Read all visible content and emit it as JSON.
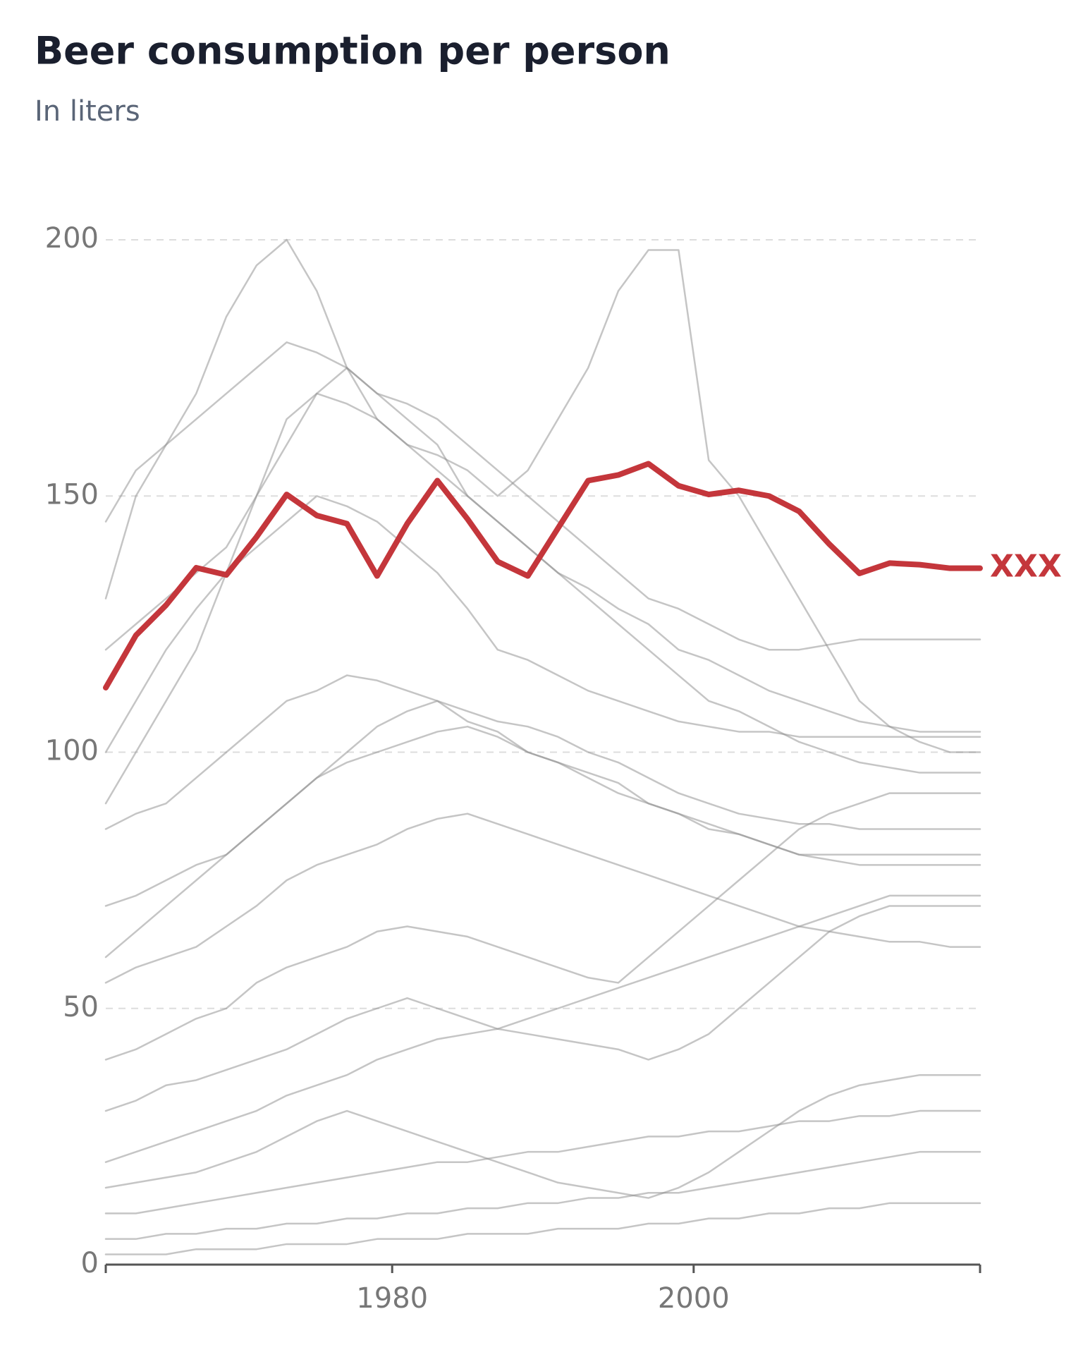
{
  "chart_data": {
    "type": "line",
    "title": "Beer consumption per person",
    "subtitle": "In liters",
    "x": [
      1961,
      1963,
      1965,
      1967,
      1969,
      1971,
      1973,
      1975,
      1977,
      1979,
      1981,
      1983,
      1985,
      1987,
      1989,
      1991,
      1993,
      1995,
      1997,
      1999,
      2001,
      2003,
      2005,
      2007,
      2009,
      2011,
      2013,
      2015,
      2017,
      2019
    ],
    "xlim": [
      1961,
      2019
    ],
    "xticks": [
      1980,
      2000
    ],
    "ylim": [
      0,
      200
    ],
    "yticks": [
      0,
      50,
      100,
      150,
      200
    ],
    "grid": true,
    "series": [
      {
        "name": "XXX",
        "color": "#c4363b",
        "values": [
          112.6,
          122.8,
          128.7,
          136,
          134.6,
          142,
          150.3,
          146.2,
          144.6,
          134.4,
          144.6,
          153,
          145.5,
          137.2,
          134.4,
          143.7,
          153,
          154.1,
          156.3,
          152,
          150.3,
          151.1,
          150,
          147,
          140.6,
          134.9,
          136.9,
          136.6,
          135.9,
          135.9
        ]
      },
      {
        "color": "#8c8c8c",
        "values": [
          130,
          150,
          160,
          170,
          185,
          195,
          200,
          190,
          175,
          165,
          160,
          155,
          150,
          145,
          140,
          135,
          130,
          125,
          120,
          115,
          110,
          108,
          105,
          102,
          100,
          98,
          97,
          96,
          96,
          96
        ]
      },
      {
        "color": "#8c8c8c",
        "values": [
          90,
          100,
          110,
          120,
          135,
          150,
          165,
          170,
          168,
          165,
          160,
          158,
          155,
          150,
          155,
          165,
          175,
          190,
          198,
          198,
          157,
          150,
          140,
          130,
          120,
          110,
          105,
          102,
          100,
          100
        ]
      },
      {
        "color": "#8c8c8c",
        "values": [
          145,
          155,
          160,
          165,
          170,
          175,
          180,
          178,
          175,
          170,
          168,
          165,
          160,
          155,
          150,
          145,
          140,
          135,
          130,
          128,
          125,
          122,
          120,
          120,
          121,
          122,
          122,
          122,
          122,
          122
        ]
      },
      {
        "color": "#8c8c8c",
        "values": [
          100,
          110,
          120,
          128,
          135,
          140,
          145,
          150,
          148,
          145,
          140,
          135,
          128,
          120,
          118,
          115,
          112,
          110,
          108,
          106,
          105,
          104,
          104,
          103,
          103,
          103,
          103,
          103,
          103,
          103
        ]
      },
      {
        "color": "#8c8c8c",
        "values": [
          85,
          88,
          90,
          95,
          100,
          105,
          110,
          112,
          115,
          114,
          112,
          110,
          108,
          106,
          105,
          103,
          100,
          98,
          95,
          92,
          90,
          88,
          87,
          86,
          86,
          85,
          85,
          85,
          85,
          85
        ]
      },
      {
        "color": "#8c8c8c",
        "values": [
          70,
          72,
          75,
          78,
          80,
          85,
          90,
          95,
          100,
          105,
          108,
          110,
          106,
          104,
          100,
          98,
          96,
          94,
          90,
          88,
          85,
          84,
          82,
          80,
          79,
          78,
          78,
          78,
          78,
          78
        ]
      },
      {
        "color": "#8c8c8c",
        "values": [
          55,
          58,
          60,
          62,
          66,
          70,
          75,
          78,
          80,
          82,
          85,
          87,
          88,
          86,
          84,
          82,
          80,
          78,
          76,
          74,
          72,
          70,
          68,
          66,
          65,
          64,
          63,
          63,
          62,
          62
        ]
      },
      {
        "color": "#8c8c8c",
        "values": [
          40,
          42,
          45,
          48,
          50,
          55,
          58,
          60,
          62,
          65,
          66,
          65,
          64,
          62,
          60,
          58,
          56,
          55,
          60,
          65,
          70,
          75,
          80,
          85,
          88,
          90,
          92,
          92,
          92,
          92
        ]
      },
      {
        "color": "#8c8c8c",
        "values": [
          30,
          32,
          35,
          36,
          38,
          40,
          42,
          45,
          48,
          50,
          52,
          50,
          48,
          46,
          45,
          44,
          43,
          42,
          40,
          42,
          45,
          50,
          55,
          60,
          65,
          68,
          70,
          70,
          70,
          70
        ]
      },
      {
        "color": "#8c8c8c",
        "values": [
          20,
          22,
          24,
          26,
          28,
          30,
          33,
          35,
          37,
          40,
          42,
          44,
          45,
          46,
          48,
          50,
          52,
          54,
          56,
          58,
          60,
          62,
          64,
          66,
          68,
          70,
          72,
          72,
          72,
          72
        ]
      },
      {
        "color": "#8c8c8c",
        "values": [
          15,
          16,
          17,
          18,
          20,
          22,
          25,
          28,
          30,
          28,
          26,
          24,
          22,
          20,
          18,
          16,
          15,
          14,
          13,
          15,
          18,
          22,
          26,
          30,
          33,
          35,
          36,
          37,
          37,
          37
        ]
      },
      {
        "color": "#8c8c8c",
        "values": [
          10,
          10,
          11,
          12,
          13,
          14,
          15,
          16,
          17,
          18,
          19,
          20,
          20,
          21,
          22,
          22,
          23,
          24,
          25,
          25,
          26,
          26,
          27,
          28,
          28,
          29,
          29,
          30,
          30,
          30
        ]
      },
      {
        "color": "#8c8c8c",
        "values": [
          5,
          5,
          6,
          6,
          7,
          7,
          8,
          8,
          9,
          9,
          10,
          10,
          11,
          11,
          12,
          12,
          13,
          13,
          14,
          14,
          15,
          16,
          17,
          18,
          19,
          20,
          21,
          22,
          22,
          22
        ]
      },
      {
        "color": "#8c8c8c",
        "values": [
          2,
          2,
          2,
          3,
          3,
          3,
          4,
          4,
          4,
          5,
          5,
          5,
          6,
          6,
          6,
          7,
          7,
          7,
          8,
          8,
          9,
          9,
          10,
          10,
          11,
          11,
          12,
          12,
          12,
          12
        ]
      },
      {
        "color": "#8c8c8c",
        "values": [
          120,
          125,
          130,
          135,
          140,
          150,
          160,
          170,
          175,
          170,
          165,
          160,
          150,
          145,
          140,
          135,
          132,
          128,
          125,
          120,
          118,
          115,
          112,
          110,
          108,
          106,
          105,
          104,
          104,
          104
        ]
      },
      {
        "color": "#8c8c8c",
        "values": [
          60,
          65,
          70,
          75,
          80,
          85,
          90,
          95,
          98,
          100,
          102,
          104,
          105,
          103,
          100,
          98,
          95,
          92,
          90,
          88,
          86,
          84,
          82,
          80,
          80,
          80,
          80,
          80,
          80,
          80
        ]
      }
    ]
  }
}
